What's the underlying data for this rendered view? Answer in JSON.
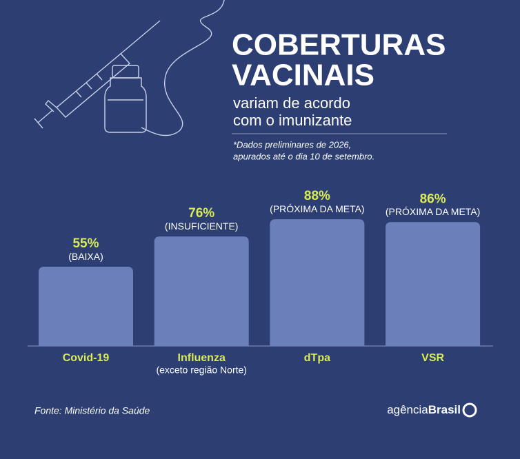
{
  "chart_data": {
    "type": "bar",
    "title_lines": [
      "COBERTURAS",
      "VACINAIS"
    ],
    "subtitle_lines": [
      "variam de acordo",
      "com o imunizante"
    ],
    "note_lines": [
      "*Dados preliminares de 2026,",
      "apurados até o dia 10 de setembro."
    ],
    "categories": [
      "Covid-19",
      "Influenza",
      "dTpa",
      "VSR"
    ],
    "category_notes": [
      null,
      "(exceto região Norte)",
      null,
      null
    ],
    "values": [
      55,
      76,
      88,
      86
    ],
    "value_labels": [
      "55%",
      "76%",
      "88%",
      "86%"
    ],
    "status_labels": [
      "(BAIXA)",
      "(INSUFICIENTE)",
      "(PRÓXIMA DA META)",
      "(PRÓXIMA DA META)"
    ],
    "color": "#6b80bb",
    "label_color": "#d9ec55",
    "source": "Fonte: Ministério da Saúde",
    "brand": {
      "prefix": "agência",
      "name": "Brasil"
    }
  }
}
